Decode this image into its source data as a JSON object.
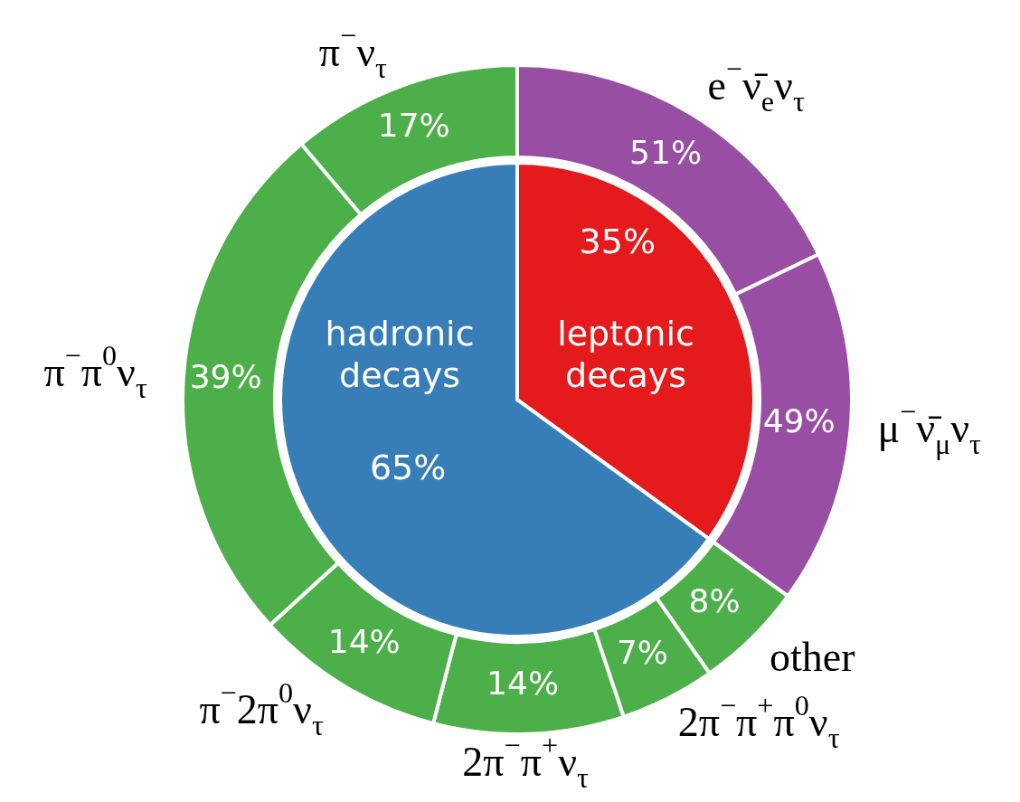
{
  "chart_data": [
    {
      "type": "pie",
      "categories": [
        "leptonic decays",
        "hadronic decays"
      ],
      "values": [
        35,
        65
      ],
      "colors": [
        "#e41a1c",
        "#377eb8"
      ],
      "value_labels": [
        "35%",
        "65%"
      ]
    },
    {
      "type": "donut",
      "categories": [
        "e$^{−}$ν̄$_{e}$ν$_{τ}$",
        "μ$^{−}$ν̄$_{μ}$ν$_{τ}$"
      ],
      "values": [
        51,
        49
      ],
      "colors": [
        "#984ea3",
        "#984ea3"
      ],
      "value_labels": [
        "51%",
        "49%"
      ]
    },
    {
      "type": "donut",
      "categories": [
        "other",
        "2π$^{−}$π$^{+}$π$^{0}$ν$_{τ}$",
        "2π$^{−}$π$^{+}$ν$_{τ}$",
        "π$^{−}$2π$^{0}$ν$_{τ}$",
        "π$^{−}$π$^{0}$ν$_{τ}$",
        "π$^{−}$ν$_{τ}$"
      ],
      "values": [
        8,
        7,
        14,
        14,
        39,
        17
      ],
      "colors": [
        "#4daf4a",
        "#4daf4a",
        "#4daf4a",
        "#4daf4a",
        "#4daf4a",
        "#4daf4a"
      ],
      "value_labels": [
        "8%",
        "7%",
        "14%",
        "14%",
        "39%",
        "17%"
      ]
    }
  ]
}
